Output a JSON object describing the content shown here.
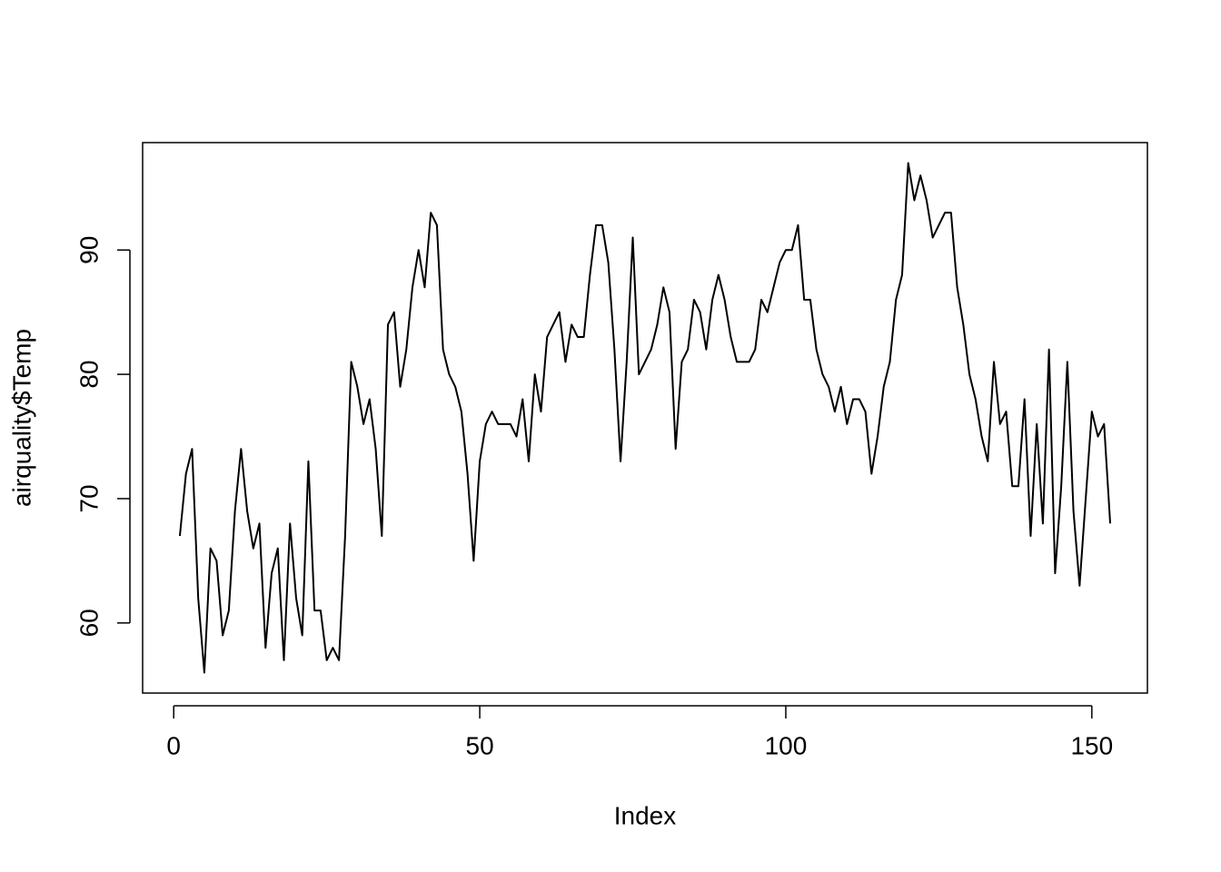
{
  "chart_data": {
    "type": "line",
    "x_label": "Index",
    "y_label": "airquality$Temp",
    "x": [
      1,
      2,
      3,
      4,
      5,
      6,
      7,
      8,
      9,
      10,
      11,
      12,
      13,
      14,
      15,
      16,
      17,
      18,
      19,
      20,
      21,
      22,
      23,
      24,
      25,
      26,
      27,
      28,
      29,
      30,
      31,
      32,
      33,
      34,
      35,
      36,
      37,
      38,
      39,
      40,
      41,
      42,
      43,
      44,
      45,
      46,
      47,
      48,
      49,
      50,
      51,
      52,
      53,
      54,
      55,
      56,
      57,
      58,
      59,
      60,
      61,
      62,
      63,
      64,
      65,
      66,
      67,
      68,
      69,
      70,
      71,
      72,
      73,
      74,
      75,
      76,
      77,
      78,
      79,
      80,
      81,
      82,
      83,
      84,
      85,
      86,
      87,
      88,
      89,
      90,
      91,
      92,
      93,
      94,
      95,
      96,
      97,
      98,
      99,
      100,
      101,
      102,
      103,
      104,
      105,
      106,
      107,
      108,
      109,
      110,
      111,
      112,
      113,
      114,
      115,
      116,
      117,
      118,
      119,
      120,
      121,
      122,
      123,
      124,
      125,
      126,
      127,
      128,
      129,
      130,
      131,
      132,
      133,
      134,
      135,
      136,
      137,
      138,
      139,
      140,
      141,
      142,
      143,
      144,
      145,
      146,
      147,
      148,
      149,
      150,
      151,
      152,
      153
    ],
    "values": [
      67,
      72,
      74,
      62,
      56,
      66,
      65,
      59,
      61,
      69,
      74,
      69,
      66,
      68,
      58,
      64,
      66,
      57,
      68,
      62,
      59,
      73,
      61,
      61,
      57,
      58,
      57,
      67,
      81,
      79,
      76,
      78,
      74,
      67,
      84,
      85,
      79,
      82,
      87,
      90,
      87,
      93,
      92,
      82,
      80,
      79,
      77,
      72,
      65,
      73,
      76,
      77,
      76,
      76,
      76,
      75,
      78,
      73,
      80,
      77,
      83,
      84,
      85,
      81,
      84,
      83,
      83,
      88,
      92,
      92,
      89,
      82,
      73,
      81,
      91,
      80,
      81,
      82,
      84,
      87,
      85,
      74,
      81,
      82,
      86,
      85,
      82,
      86,
      88,
      86,
      83,
      81,
      81,
      81,
      82,
      86,
      85,
      87,
      89,
      90,
      90,
      92,
      86,
      86,
      82,
      80,
      79,
      77,
      79,
      76,
      78,
      78,
      77,
      72,
      75,
      79,
      81,
      86,
      88,
      97,
      94,
      96,
      94,
      91,
      92,
      93,
      93,
      87,
      84,
      80,
      78,
      75,
      73,
      81,
      76,
      77,
      71,
      71,
      78,
      67,
      76,
      68,
      82,
      64,
      71,
      81,
      69,
      63,
      70,
      77,
      75,
      76,
      68
    ],
    "color": "#000000",
    "xlim": [
      -5.08,
      159.08
    ],
    "xticks": [
      0,
      50,
      100,
      150
    ],
    "ylim": [
      54.36,
      98.64
    ],
    "yticks": [
      60,
      70,
      80,
      90
    ]
  }
}
